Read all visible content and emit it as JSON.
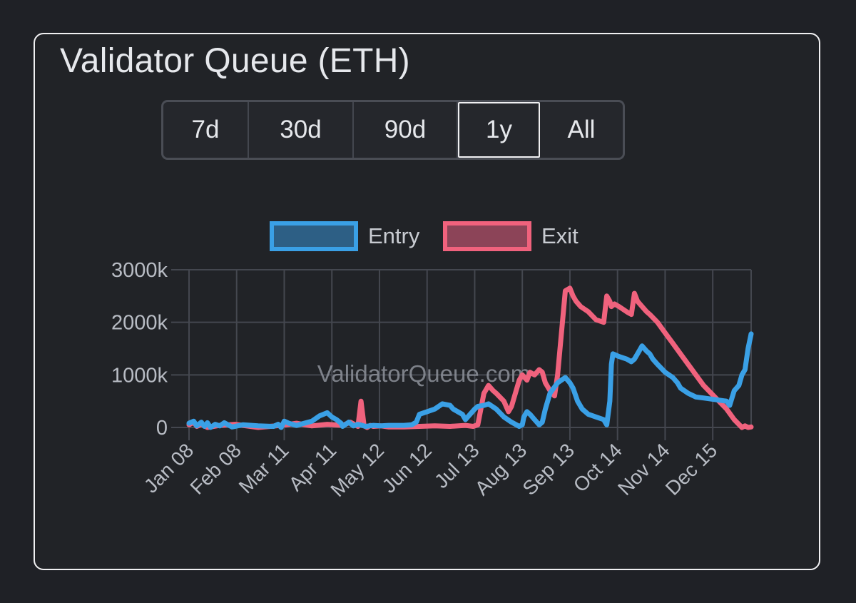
{
  "card": {
    "title": "Validator Queue (ETH)"
  },
  "range_selector": {
    "options": [
      "7d",
      "30d",
      "90d",
      "1y",
      "All"
    ],
    "selected": "1y"
  },
  "watermark": "ValidatorQueue.com",
  "colors": {
    "entry": "#3aa0e6",
    "entry_fill": "#2d5f85",
    "exit": "#f0627d",
    "exit_fill": "#8c4458",
    "grid": "#44474f"
  },
  "chart_data": {
    "type": "line",
    "title": "Validator Queue (ETH)",
    "xlabel": "",
    "ylabel": "",
    "ylim": [
      0,
      3000
    ],
    "y_ticks": [
      0,
      1000,
      2000,
      3000
    ],
    "y_tick_labels": [
      "0",
      "1000k",
      "2000k",
      "3000k"
    ],
    "x_ticks": [
      0,
      31,
      62,
      93,
      124,
      155,
      186,
      217,
      248,
      279,
      310,
      341
    ],
    "x_tick_labels": [
      "Jan 08",
      "Feb 08",
      "Mar 11",
      "Apr 11",
      "May 12",
      "Jun 12",
      "Jul 13",
      "Aug 13",
      "Sep 13",
      "Oct 14",
      "Nov 14",
      "Dec 15"
    ],
    "x_max": 366,
    "legend": [
      "Entry",
      "Exit"
    ],
    "grid": true,
    "series": [
      {
        "name": "Entry",
        "x": [
          0,
          3,
          5,
          8,
          10,
          12,
          14,
          17,
          20,
          23,
          28,
          35,
          45,
          55,
          58,
          60,
          62,
          65,
          70,
          75,
          80,
          85,
          90,
          93,
          96,
          99,
          100,
          102,
          104,
          107,
          110,
          115,
          120,
          125,
          130,
          140,
          145,
          148,
          150,
          155,
          160,
          165,
          170,
          172,
          175,
          178,
          180,
          183,
          186,
          188,
          192,
          195,
          200,
          205,
          210,
          215,
          217,
          218,
          220,
          222,
          225,
          228,
          230,
          232,
          235,
          240,
          245,
          248,
          250,
          253,
          256,
          260,
          265,
          270,
          272,
          274,
          275,
          276,
          280,
          285,
          288,
          290,
          292,
          295,
          298,
          300,
          302,
          305,
          310,
          315,
          318,
          320,
          325,
          330,
          335,
          340,
          345,
          350,
          352,
          355,
          358,
          360,
          362,
          364,
          366
        ],
        "values": [
          80,
          120,
          30,
          100,
          20,
          90,
          0,
          60,
          30,
          90,
          10,
          50,
          30,
          20,
          60,
          0,
          120,
          80,
          40,
          80,
          120,
          220,
          280,
          200,
          150,
          80,
          20,
          60,
          100,
          30,
          60,
          20,
          40,
          30,
          40,
          40,
          50,
          100,
          250,
          300,
          350,
          450,
          420,
          350,
          300,
          250,
          150,
          250,
          350,
          400,
          420,
          450,
          350,
          200,
          100,
          20,
          50,
          200,
          300,
          250,
          150,
          50,
          100,
          350,
          650,
          850,
          950,
          850,
          750,
          500,
          350,
          250,
          200,
          150,
          50,
          500,
          1200,
          1400,
          1350,
          1300,
          1250,
          1300,
          1400,
          1550,
          1450,
          1400,
          1300,
          1200,
          1050,
          950,
          850,
          750,
          650,
          580,
          560,
          540,
          520,
          500,
          420,
          700,
          800,
          1000,
          1100,
          1500,
          1780
        ]
      },
      {
        "name": "Exit",
        "x": [
          0,
          3,
          5,
          8,
          12,
          20,
          30,
          45,
          60,
          70,
          80,
          90,
          100,
          105,
          110,
          112,
          114,
          116,
          118,
          120,
          125,
          130,
          140,
          150,
          160,
          170,
          180,
          185,
          188,
          190,
          192,
          195,
          198,
          200,
          205,
          208,
          210,
          212,
          215,
          217,
          220,
          222,
          225,
          228,
          230,
          232,
          235,
          238,
          240,
          245,
          248,
          250,
          252,
          255,
          260,
          265,
          270,
          272,
          274,
          275,
          277,
          280,
          285,
          288,
          290,
          292,
          295,
          298,
          300,
          305,
          310,
          315,
          320,
          325,
          330,
          335,
          340,
          345,
          350,
          355,
          360,
          362,
          364,
          366
        ],
        "values": [
          50,
          100,
          20,
          60,
          0,
          40,
          60,
          0,
          40,
          80,
          30,
          60,
          40,
          100,
          20,
          500,
          30,
          0,
          40,
          20,
          30,
          10,
          10,
          20,
          30,
          20,
          40,
          20,
          50,
          350,
          650,
          800,
          700,
          650,
          500,
          300,
          400,
          600,
          900,
          1000,
          900,
          1050,
          1000,
          1100,
          1050,
          850,
          700,
          600,
          1000,
          2600,
          2650,
          2500,
          2400,
          2300,
          2200,
          2050,
          2000,
          2500,
          2400,
          2300,
          2350,
          2300,
          2200,
          2150,
          2550,
          2400,
          2300,
          2200,
          2150,
          2000,
          1800,
          1600,
          1400,
          1200,
          1000,
          800,
          650,
          500,
          350,
          150,
          0,
          30,
          0,
          10
        ]
      }
    ]
  }
}
